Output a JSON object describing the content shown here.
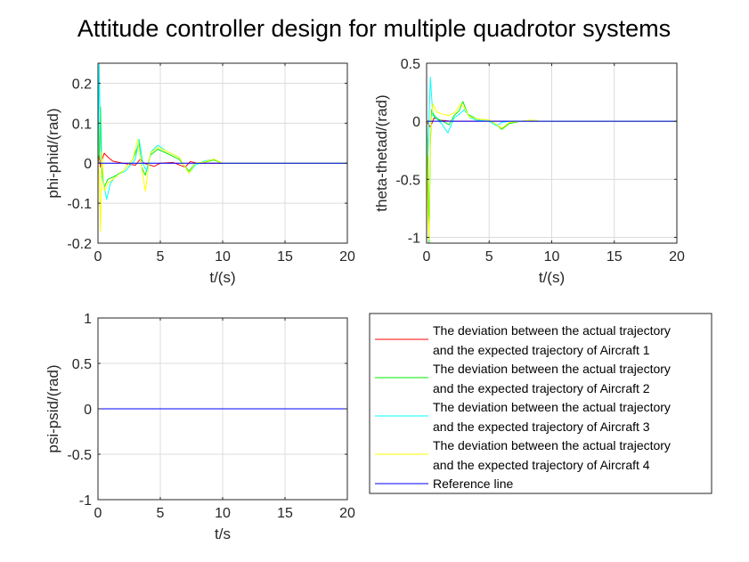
{
  "figure": {
    "title": "Attitude controller design for multiple quadrotor systems"
  },
  "colors": {
    "aircraft1": "#ff0000",
    "aircraft2": "#00ee00",
    "aircraft3": "#00ffff",
    "aircraft4": "#ffff00",
    "reference": "#0000ff",
    "grid": "#dcdcdc",
    "axis": "#262626"
  },
  "chart_data": [
    {
      "id": "phi",
      "type": "line",
      "xlabel": "t/(s)",
      "ylabel": "phi-phid/(rad)",
      "xlim": [
        0,
        20
      ],
      "ylim": [
        -0.2,
        0.25
      ],
      "xticks": [
        0,
        5,
        10,
        15,
        20
      ],
      "xtick_labels": [
        "0",
        "5",
        "10",
        "15",
        "20"
      ],
      "yticks": [
        -0.2,
        -0.1,
        0,
        0.1,
        0.2
      ],
      "ytick_labels": [
        "-0.2",
        "-0.1",
        "0",
        "0.1",
        "0.2"
      ],
      "grid": true,
      "series": [
        {
          "key": "a1",
          "color": "#ff0000",
          "x": [
            0,
            0.1,
            0.2,
            0.3,
            0.5,
            0.8,
            1.2,
            2,
            3,
            3.4,
            3.7,
            4.5,
            5,
            6,
            7,
            7.4,
            8,
            9,
            10,
            20
          ],
          "y": [
            0,
            0.02,
            -0.01,
            0.005,
            0.025,
            0.015,
            0.005,
            0,
            -0.005,
            0.01,
            0,
            -0.008,
            0,
            0.002,
            -0.01,
            0.004,
            0,
            0,
            0,
            0
          ]
        },
        {
          "key": "a2",
          "color": "#00ee00",
          "x": [
            0,
            0.1,
            0.15,
            0.2,
            0.3,
            0.5,
            0.8,
            1.2,
            2,
            2.8,
            3.3,
            3.5,
            3.8,
            4.2,
            4.8,
            5.5,
            6.5,
            7.3,
            7.8,
            8.5,
            9.3,
            10,
            11,
            20
          ],
          "y": [
            0,
            0.02,
            0.1,
            0.14,
            -0.01,
            -0.06,
            -0.04,
            -0.035,
            -0.02,
            0.01,
            0.05,
            -0.01,
            -0.03,
            0.02,
            0.035,
            0.025,
            0.01,
            -0.02,
            0,
            0.002,
            0.008,
            0,
            0,
            0
          ]
        },
        {
          "key": "a3",
          "color": "#00ffff",
          "x": [
            0,
            0.1,
            0.2,
            0.3,
            0.5,
            0.7,
            1,
            1.5,
            2.2,
            3,
            3.3,
            3.6,
            3.9,
            4.3,
            4.8,
            5.5,
            6.5,
            7.3,
            7.8,
            8.5,
            9.3,
            10,
            11,
            20
          ],
          "y": [
            0,
            0.25,
            0.05,
            -0.03,
            -0.06,
            -0.09,
            -0.05,
            -0.03,
            -0.02,
            0.01,
            0.06,
            0,
            -0.02,
            0.03,
            0.045,
            0.03,
            0.015,
            -0.025,
            -0.005,
            0.005,
            0.01,
            0,
            0,
            0
          ]
        },
        {
          "key": "a4",
          "color": "#ffff00",
          "x": [
            0,
            0.1,
            0.2,
            0.3,
            0.5,
            0.8,
            1.2,
            2,
            2.8,
            3.2,
            3.5,
            3.8,
            4.2,
            4.8,
            5.5,
            6.5,
            7.3,
            7.8,
            8.5,
            9.3,
            10,
            11,
            20
          ],
          "y": [
            0,
            -0.03,
            -0.17,
            0.03,
            -0.07,
            -0.05,
            -0.04,
            -0.02,
            0.01,
            0.06,
            -0.01,
            -0.07,
            0.025,
            0.04,
            0.03,
            0.015,
            -0.025,
            0,
            0.003,
            0.01,
            0,
            0,
            0
          ]
        },
        {
          "key": "ref",
          "color": "#0000ff",
          "x": [
            0,
            20
          ],
          "y": [
            0,
            0
          ]
        }
      ]
    },
    {
      "id": "theta",
      "type": "line",
      "xlabel": "t/(s)",
      "ylabel": "theta-thetad/(rad)",
      "xlim": [
        0,
        20
      ],
      "ylim": [
        -1.05,
        0.5
      ],
      "xticks": [
        0,
        5,
        10,
        15,
        20
      ],
      "xtick_labels": [
        "0",
        "5",
        "10",
        "15",
        "20"
      ],
      "yticks": [
        -1,
        -0.5,
        0,
        0.5
      ],
      "ytick_labels": [
        "-1",
        "-0.5",
        "0",
        "0.5"
      ],
      "grid": true,
      "series": [
        {
          "key": "a1",
          "color": "#ff0000",
          "x": [
            0,
            0.3,
            0.6,
            1,
            2,
            3,
            5,
            20
          ],
          "y": [
            0,
            -0.05,
            0.03,
            0.01,
            0,
            0,
            0,
            0
          ]
        },
        {
          "key": "a2",
          "color": "#00ee00",
          "x": [
            0,
            0.1,
            0.2,
            0.3,
            0.4,
            0.6,
            0.9,
            1.3,
            1.8,
            2.2,
            2.6,
            2.9,
            3.3,
            4,
            5,
            5.6,
            6,
            6.6,
            7.5,
            8.5,
            9,
            20
          ],
          "y": [
            0,
            -0.3,
            -1.05,
            -0.2,
            0.1,
            0.05,
            0.02,
            0,
            -0.03,
            0.05,
            0.09,
            0.17,
            0.06,
            0.02,
            0.01,
            -0.03,
            -0.07,
            -0.02,
            0,
            0.01,
            0,
            0
          ]
        },
        {
          "key": "a3",
          "color": "#00ffff",
          "x": [
            0,
            0.1,
            0.3,
            0.5,
            0.8,
            1.2,
            1.7,
            2.2,
            2.6,
            3,
            3.5,
            4,
            5,
            5.6,
            6,
            6.6,
            7.5,
            9,
            20
          ],
          "y": [
            0,
            -0.3,
            0.38,
            0.05,
            0.02,
            -0.02,
            -0.1,
            0.03,
            0.06,
            0.1,
            0.03,
            0.01,
            0,
            -0.04,
            -0.01,
            0,
            0,
            0,
            0
          ]
        },
        {
          "key": "a4",
          "color": "#ffff00",
          "x": [
            0,
            0.1,
            0.2,
            0.3,
            0.5,
            0.8,
            1.3,
            1.8,
            2.3,
            2.7,
            3,
            3.4,
            4,
            5,
            5.6,
            6,
            6.6,
            7.5,
            8.5,
            9,
            20
          ],
          "y": [
            0,
            -0.8,
            -1.02,
            -0.1,
            0.15,
            0.08,
            0.06,
            0.05,
            0.08,
            0.15,
            0.12,
            0.04,
            0.02,
            0.01,
            -0.03,
            -0.06,
            -0.01,
            0,
            0.01,
            0,
            0
          ]
        },
        {
          "key": "ref",
          "color": "#0000ff",
          "x": [
            0,
            20
          ],
          "y": [
            0,
            0
          ]
        }
      ]
    },
    {
      "id": "psi",
      "type": "line",
      "xlabel": "t/s",
      "ylabel": "psi-psid/(rad)",
      "xlim": [
        0,
        20
      ],
      "ylim": [
        -1,
        1
      ],
      "xticks": [
        0,
        5,
        10,
        15,
        20
      ],
      "xtick_labels": [
        "0",
        "5",
        "10",
        "15",
        "20"
      ],
      "yticks": [
        -1,
        -0.5,
        0,
        0.5,
        1
      ],
      "ytick_labels": [
        "-1",
        "-0.5",
        "0",
        "0.5",
        "1"
      ],
      "grid": true,
      "series": [
        {
          "key": "a1",
          "color": "#ff0000",
          "x": [
            0,
            20
          ],
          "y": [
            0,
            0
          ]
        },
        {
          "key": "a2",
          "color": "#00ee00",
          "x": [
            0,
            20
          ],
          "y": [
            0,
            0
          ]
        },
        {
          "key": "a3",
          "color": "#00ffff",
          "x": [
            0,
            20
          ],
          "y": [
            0,
            0
          ]
        },
        {
          "key": "a4",
          "color": "#ffff00",
          "x": [
            0,
            20
          ],
          "y": [
            0,
            0
          ]
        },
        {
          "key": "ref",
          "color": "#0000ff",
          "x": [
            0,
            20
          ],
          "y": [
            0,
            0
          ]
        }
      ]
    }
  ],
  "legend": {
    "placement": "bottom-right",
    "entries": [
      {
        "color": "#ff0000",
        "line1": "The deviation between the actual trajectory",
        "line2": "and the expected trajectory of Aircraft 1"
      },
      {
        "color": "#00ee00",
        "line1": "The deviation between the actual trajectory",
        "line2": "and the expected trajectory of Aircraft 2"
      },
      {
        "color": "#00ffff",
        "line1": "The deviation between the actual trajectory",
        "line2": "and the expected trajectory of Aircraft 3"
      },
      {
        "color": "#ffff00",
        "line1": "The deviation between the actual trajectory",
        "line2": "and the expected trajectory of Aircraft 4"
      },
      {
        "color": "#0000ff",
        "line1": "Reference line",
        "line2": ""
      }
    ]
  }
}
